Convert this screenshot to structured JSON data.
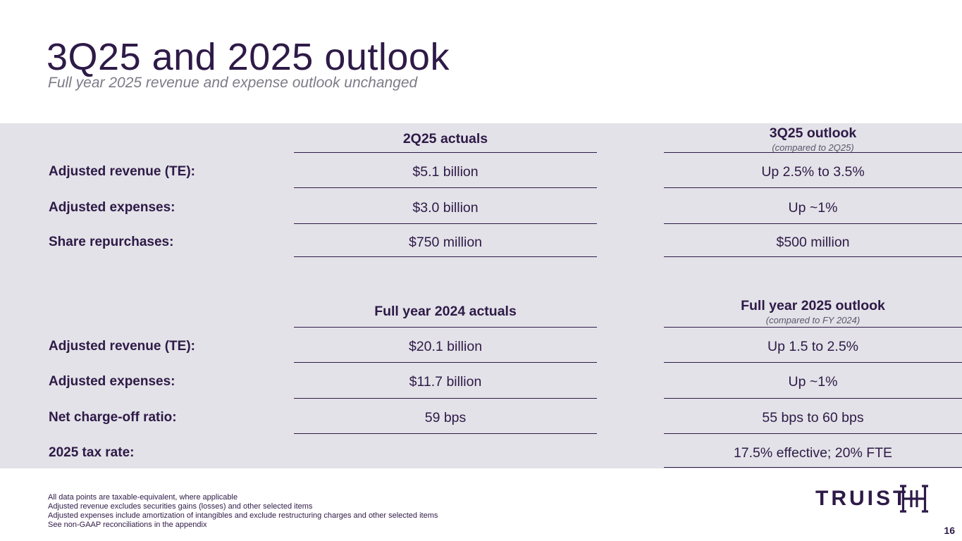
{
  "header": {
    "title": "3Q25 and 2025 outlook",
    "subtitle": "Full year 2025 revenue and expense outlook unchanged"
  },
  "section1": {
    "col1_header": "2Q25 actuals",
    "col2_header": "3Q25 outlook",
    "col2_subheader": "(compared to 2Q25)",
    "rows": [
      {
        "label": "Adjusted revenue (TE):",
        "actual": "$5.1 billion",
        "outlook": "Up 2.5% to 3.5%"
      },
      {
        "label": "Adjusted expenses:",
        "actual": "$3.0 billion",
        "outlook": "Up ~1%"
      },
      {
        "label": "Share repurchases:",
        "actual": "$750 million",
        "outlook": "$500 million"
      }
    ]
  },
  "section2": {
    "col1_header": "Full year 2024 actuals",
    "col2_header": "Full year 2025 outlook",
    "col2_subheader": "(compared to FY 2024)",
    "rows": [
      {
        "label": "Adjusted revenue (TE):",
        "actual": "$20.1 billion",
        "outlook": "Up 1.5 to 2.5%"
      },
      {
        "label": "Adjusted expenses:",
        "actual": "$11.7 billion",
        "outlook": "Up ~1%"
      },
      {
        "label": "Net charge-off ratio:",
        "actual": "59 bps",
        "outlook": "55 bps to 60 bps"
      },
      {
        "label": "2025 tax rate:",
        "actual": "",
        "outlook": "17.5% effective; 20% FTE"
      }
    ]
  },
  "footnotes": [
    "All data points are taxable-equivalent, where applicable",
    "Adjusted revenue excludes securities gains (losses) and other selected items",
    "Adjusted expenses include amortization of intangibles and exclude restructuring charges and other selected items",
    "See non-GAAP reconciliations in the appendix"
  ],
  "logo": {
    "text": "TRUIST",
    "icon": "truist-logo-mark-icon"
  },
  "page_number": "16",
  "colors": {
    "brand": "#2e1a47",
    "panel": "#e3e2e8",
    "muted": "#7d7b87"
  }
}
